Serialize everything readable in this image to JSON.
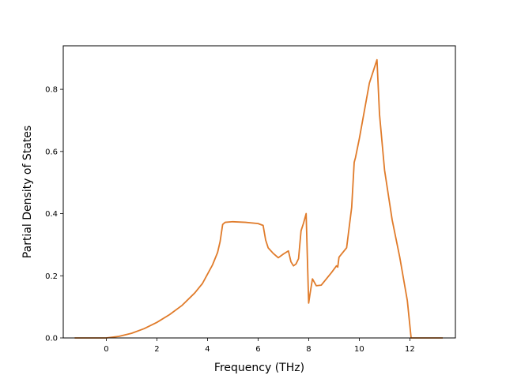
{
  "chart_data": {
    "type": "line",
    "xlabel": "Frequency (THz)",
    "ylabel": "Partial Density of States",
    "xlim": [
      -1.7,
      13.8
    ],
    "ylim": [
      0.0,
      0.94
    ],
    "xticks": [
      0,
      2,
      4,
      6,
      8,
      10,
      12
    ],
    "yticks": [
      0.0,
      0.2,
      0.4,
      0.6,
      0.8
    ],
    "xtick_labels": [
      "0",
      "2",
      "4",
      "6",
      "8",
      "10",
      "12"
    ],
    "ytick_labels": [
      "0.0",
      "0.2",
      "0.4",
      "0.6",
      "0.8"
    ],
    "grid": false,
    "series": [
      {
        "color": "#e07b2a",
        "x": [
          -1.25,
          0.0,
          0.5,
          1.0,
          1.5,
          2.0,
          2.5,
          3.0,
          3.5,
          3.8,
          4.0,
          4.2,
          4.4,
          4.5,
          4.6,
          4.7,
          5.0,
          5.5,
          6.0,
          6.2,
          6.3,
          6.4,
          6.6,
          6.8,
          7.0,
          7.2,
          7.3,
          7.4,
          7.5,
          7.6,
          7.7,
          7.8,
          7.9,
          8.0,
          8.05,
          8.15,
          8.3,
          8.5,
          8.7,
          8.9,
          9.1,
          9.15,
          9.2,
          9.5,
          9.7,
          9.8,
          9.85,
          10.0,
          10.2,
          10.4,
          10.6,
          10.7,
          10.8,
          11.0,
          11.3,
          11.6,
          11.9,
          12.05,
          12.2,
          13.3
        ],
        "y": [
          0.0,
          0.0,
          0.005,
          0.015,
          0.03,
          0.05,
          0.075,
          0.105,
          0.145,
          0.175,
          0.205,
          0.235,
          0.275,
          0.31,
          0.365,
          0.372,
          0.374,
          0.372,
          0.368,
          0.362,
          0.315,
          0.29,
          0.272,
          0.258,
          0.27,
          0.28,
          0.245,
          0.232,
          0.238,
          0.255,
          0.345,
          0.37,
          0.4,
          0.112,
          0.14,
          0.19,
          0.168,
          0.17,
          0.19,
          0.21,
          0.232,
          0.228,
          0.26,
          0.29,
          0.42,
          0.565,
          0.58,
          0.64,
          0.73,
          0.82,
          0.87,
          0.895,
          0.72,
          0.54,
          0.38,
          0.26,
          0.12,
          0.0,
          0.0,
          0.0
        ]
      }
    ]
  }
}
